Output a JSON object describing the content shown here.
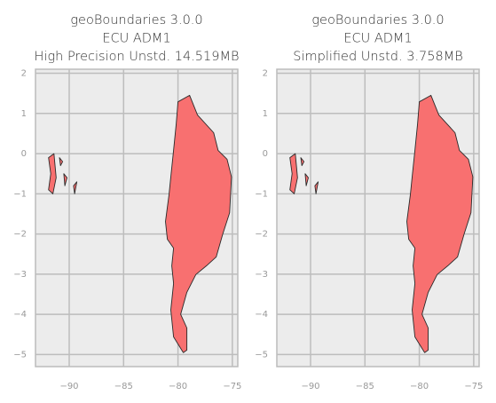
{
  "chart_data": [
    {
      "type": "map",
      "title": [
        "geoBoundaries 3.0.0",
        "ECU ADM1",
        "High Precision Unstd. 14.519MB"
      ],
      "xlim": [
        -93.1,
        -74.5
      ],
      "ylim": [
        -5.3,
        2.1
      ],
      "xticks": [
        {
          "value": -90,
          "label": "−90"
        },
        {
          "value": -85,
          "label": "−85"
        },
        {
          "value": -80,
          "label": "−80"
        },
        {
          "value": -75,
          "label": "−75"
        }
      ],
      "yticks": [
        2,
        1,
        0,
        {
          "value": -1,
          "label": "−1"
        },
        {
          "value": -2,
          "label": "−2"
        },
        {
          "value": -3,
          "label": "−3"
        },
        {
          "value": -4,
          "label": "−4"
        },
        {
          "value": -5,
          "label": "−5"
        }
      ],
      "grid": true,
      "color": "#f87070",
      "regions": [
        {
          "lon": [
            -80,
            -78.93,
            -78.2,
            -76.72,
            -76.31,
            -75.49,
            -75.08,
            -75.25,
            -75.9,
            -76.48,
            -77.38,
            -78.36,
            -79.18,
            -79.75,
            -79.18,
            -79.18,
            -79.51,
            -80.41,
            -80.66,
            -80.41,
            -80.57,
            -80.41,
            -80.98,
            -81.15,
            -80.82,
            -80.66,
            -80.41,
            -80.16
          ],
          "lat": [
            1.29,
            1.45,
            0.96,
            0.52,
            0.08,
            -0.14,
            -0.58,
            -1.47,
            -2.02,
            -2.57,
            -2.79,
            -3.01,
            -3.45,
            -4.0,
            -4.34,
            -4.89,
            -4.95,
            -4.56,
            -3.89,
            -3.23,
            -2.79,
            -2.35,
            -2.13,
            -1.69,
            -1.02,
            -0.58,
            0.08,
            0.74
          ]
        },
        {
          "lon": [
            -91.9,
            -91.4,
            -91.2,
            -91.5,
            -91.9,
            -91.7
          ],
          "lat": [
            -0.1,
            0.0,
            -0.6,
            -1.0,
            -0.9,
            -0.5
          ]
        },
        {
          "lon": [
            -90.5,
            -90.2,
            -90.4
          ],
          "lat": [
            -0.5,
            -0.6,
            -0.8
          ]
        },
        {
          "lon": [
            -89.6,
            -89.3,
            -89.5
          ],
          "lat": [
            -0.8,
            -0.7,
            -1.0
          ]
        },
        {
          "lon": [
            -90.9,
            -90.6,
            -90.8
          ],
          "lat": [
            -0.1,
            -0.2,
            -0.3
          ]
        }
      ]
    },
    {
      "type": "map",
      "title": [
        "geoBoundaries 3.0.0",
        "ECU ADM1",
        "Simplified Unstd. 3.758MB"
      ],
      "xlim": [
        -93.1,
        -74.5
      ],
      "ylim": [
        -5.3,
        2.1
      ],
      "xticks": [
        {
          "value": -90,
          "label": "−90"
        },
        {
          "value": -85,
          "label": "−85"
        },
        {
          "value": -80,
          "label": "−80"
        },
        {
          "value": -75,
          "label": "−75"
        }
      ],
      "yticks": [
        2,
        1,
        0,
        {
          "value": -1,
          "label": "−1"
        },
        {
          "value": -2,
          "label": "−2"
        },
        {
          "value": -3,
          "label": "−3"
        },
        {
          "value": -4,
          "label": "−4"
        },
        {
          "value": -5,
          "label": "−5"
        }
      ],
      "grid": true,
      "color": "#f87070",
      "regions": [
        {
          "lon": [
            -80,
            -78.93,
            -78.2,
            -76.72,
            -76.31,
            -75.49,
            -75.08,
            -75.25,
            -75.9,
            -76.48,
            -77.38,
            -78.36,
            -79.18,
            -79.75,
            -79.18,
            -79.18,
            -79.51,
            -80.41,
            -80.66,
            -80.41,
            -80.57,
            -80.41,
            -80.98,
            -81.15,
            -80.82,
            -80.66,
            -80.41,
            -80.16
          ],
          "lat": [
            1.29,
            1.45,
            0.96,
            0.52,
            0.08,
            -0.14,
            -0.58,
            -1.47,
            -2.02,
            -2.57,
            -2.79,
            -3.01,
            -3.45,
            -4.0,
            -4.34,
            -4.89,
            -4.95,
            -4.56,
            -3.89,
            -3.23,
            -2.79,
            -2.35,
            -2.13,
            -1.69,
            -1.02,
            -0.58,
            0.08,
            0.74
          ]
        },
        {
          "lon": [
            -91.9,
            -91.4,
            -91.2,
            -91.5,
            -91.9,
            -91.7
          ],
          "lat": [
            -0.1,
            0.0,
            -0.6,
            -1.0,
            -0.9,
            -0.5
          ]
        },
        {
          "lon": [
            -90.5,
            -90.2,
            -90.4
          ],
          "lat": [
            -0.5,
            -0.6,
            -0.8
          ]
        },
        {
          "lon": [
            -89.6,
            -89.3,
            -89.5
          ],
          "lat": [
            -0.8,
            -0.7,
            -1.0
          ]
        },
        {
          "lon": [
            -90.9,
            -90.6,
            -90.8
          ],
          "lat": [
            -0.1,
            -0.2,
            -0.3
          ]
        }
      ]
    }
  ]
}
